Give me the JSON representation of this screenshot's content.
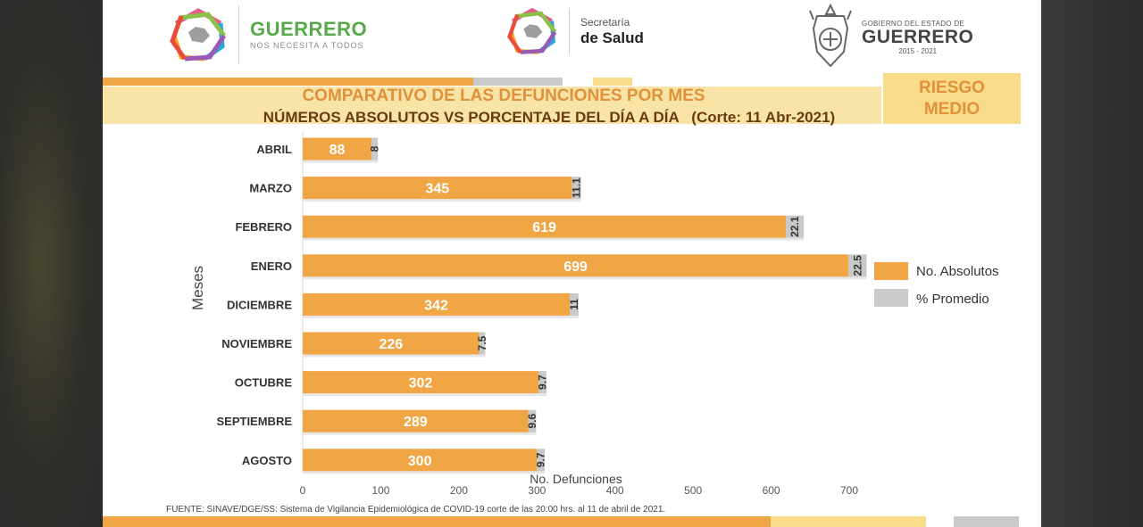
{
  "header": {
    "guerrero_word": "GUERRERO",
    "guerrero_tagline": "NOS NECESITA A TODOS",
    "secretaria_small": "Secretaría",
    "secretaria_big": "de Salud",
    "gobierno_small": "GOBIERNO DEL ESTADO DE",
    "gobierno_big": "GUERRERO",
    "gobierno_years": "2015 - 2021"
  },
  "title_line1": "COMPARATIVO DE LAS DEFUNCIONES POR MES",
  "title_line2": "NÚMEROS ABSOLUTOS VS PORCENTAJE DEL DÍA A DÍA   (Corte: 11 Abr-2021)",
  "risk_line1": "RIESGO",
  "risk_line2": "MEDIO",
  "footnote": "FUENTE: SINAVE/DGE/SS: Sistema de Vigilancia Epidemiológica de COVID-19 corte de las 20:00 hrs. al 11 de  abril de 2021.",
  "colors": {
    "absolutos": "#f0a645",
    "promedio": "#c9c9c9",
    "title_orange": "#e0913a",
    "title_brown": "#6b3a12",
    "band": "#f8e4a6",
    "risk_box": "#f8dc8a"
  },
  "chart_data": {
    "type": "bar",
    "orientation": "horizontal",
    "categories": [
      "ABRIL",
      "MARZO",
      "FEBRERO",
      "ENERO",
      "DICIEMBRE",
      "NOVIEMBRE",
      "OCTUBRE",
      "SEPTIEMBRE",
      "AGOSTO"
    ],
    "series": [
      {
        "name": "No. Absolutos",
        "values": [
          88,
          345,
          619,
          699,
          342,
          226,
          302,
          289,
          300
        ]
      },
      {
        "name": "% Promedio",
        "values": [
          8,
          11.1,
          22.1,
          22.5,
          11,
          7.5,
          9.7,
          9.6,
          9.7
        ]
      }
    ],
    "xlabel": "No. Defunciones",
    "ylabel": "Meses",
    "xlim": [
      0,
      700
    ],
    "xticks": [
      0,
      100,
      200,
      300,
      400,
      500,
      600,
      700
    ],
    "legend": "right",
    "grid": false
  }
}
